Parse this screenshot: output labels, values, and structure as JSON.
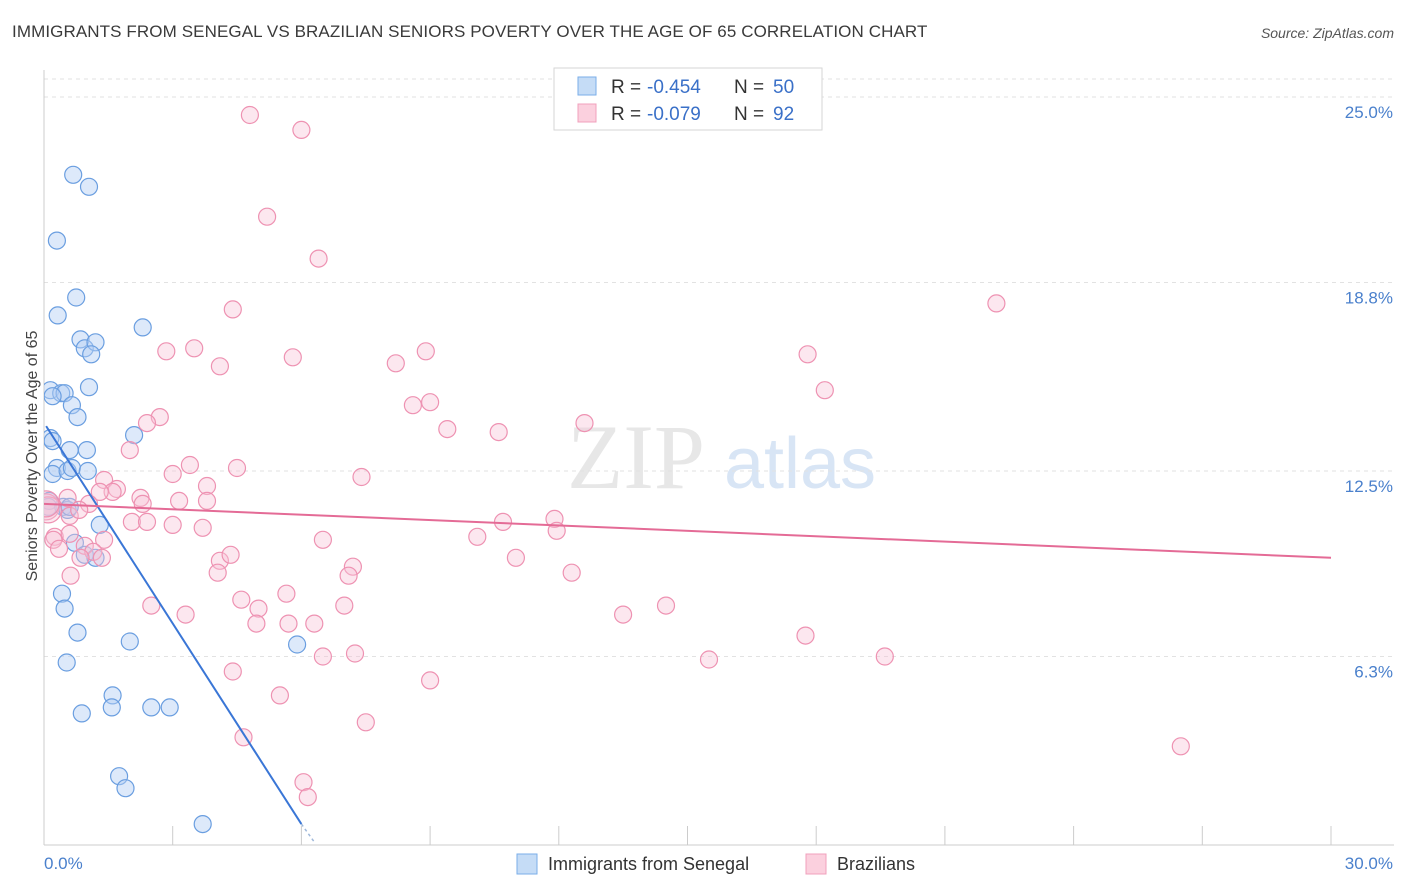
{
  "title": "IMMIGRANTS FROM SENEGAL VS BRAZILIAN SENIORS POVERTY OVER THE AGE OF 65 CORRELATION CHART",
  "source": "Source: ZipAtlas.com",
  "watermark": {
    "zip": "ZIP",
    "atlas": "atlas"
  },
  "legend_box": {
    "rows": [
      {
        "r_label": "R =",
        "r_value": "-0.454",
        "n_label": "N =",
        "n_value": "50",
        "color": "#7aaee8"
      },
      {
        "r_label": "R =",
        "r_value": "-0.079",
        "n_label": "N =",
        "n_value": "92",
        "color": "#f0a0bc"
      }
    ]
  },
  "chart_data": {
    "type": "scatter",
    "title": "IMMIGRANTS FROM SENEGAL VS BRAZILIAN SENIORS POVERTY OVER THE AGE OF 65 CORRELATION CHART",
    "xlabel": "",
    "ylabel": "Seniors Poverty Over the Age of 65",
    "xlim": [
      0,
      30
    ],
    "ylim": [
      0,
      25.8
    ],
    "x_tick_labels": [
      "0.0%",
      "30.0%"
    ],
    "y_ticks": [
      6.3,
      12.5,
      18.8,
      25.0
    ],
    "y_tick_labels": [
      "6.3%",
      "12.5%",
      "18.8%",
      "25.0%"
    ],
    "grid": true,
    "series": [
      {
        "name": "Immigrants from Senegal",
        "color": "#7aaee8",
        "trend": {
          "x": [
            0.05,
            6.0
          ],
          "y": [
            14.0,
            0.7
          ],
          "dashed_to": [
            6.3,
            0.1
          ]
        },
        "points": [
          [
            0.68,
            22.4
          ],
          [
            1.05,
            22.0
          ],
          [
            0.3,
            20.2
          ],
          [
            0.75,
            18.3
          ],
          [
            2.3,
            17.3
          ],
          [
            0.32,
            17.7
          ],
          [
            0.85,
            16.9
          ],
          [
            0.95,
            16.6
          ],
          [
            1.2,
            16.8
          ],
          [
            1.1,
            16.4
          ],
          [
            0.15,
            15.2
          ],
          [
            0.4,
            15.1
          ],
          [
            0.48,
            15.1
          ],
          [
            1.05,
            15.3
          ],
          [
            0.2,
            15.0
          ],
          [
            0.65,
            14.7
          ],
          [
            0.78,
            14.3
          ],
          [
            0.15,
            13.6
          ],
          [
            0.2,
            13.5
          ],
          [
            2.1,
            13.7
          ],
          [
            1.0,
            13.2
          ],
          [
            0.6,
            13.2
          ],
          [
            0.3,
            12.6
          ],
          [
            0.2,
            12.4
          ],
          [
            0.55,
            12.5
          ],
          [
            0.65,
            12.6
          ],
          [
            1.02,
            12.5
          ],
          [
            0.12,
            11.5
          ],
          [
            0.1,
            11.3
          ],
          [
            0.45,
            11.3
          ],
          [
            0.55,
            11.2
          ],
          [
            0.6,
            11.3
          ],
          [
            1.3,
            10.7
          ],
          [
            0.72,
            10.1
          ],
          [
            0.95,
            9.7
          ],
          [
            1.2,
            9.6
          ],
          [
            0.42,
            8.4
          ],
          [
            0.48,
            7.9
          ],
          [
            0.78,
            7.1
          ],
          [
            2.0,
            6.8
          ],
          [
            5.9,
            6.7
          ],
          [
            0.53,
            6.1
          ],
          [
            1.6,
            5.0
          ],
          [
            1.58,
            4.6
          ],
          [
            2.5,
            4.6
          ],
          [
            2.93,
            4.6
          ],
          [
            0.88,
            4.4
          ],
          [
            1.75,
            2.3
          ],
          [
            1.9,
            1.9
          ],
          [
            3.7,
            0.7
          ]
        ]
      },
      {
        "name": "Brazilians",
        "color": "#f0a0bc",
        "trend": {
          "x": [
            0.0,
            30.0
          ],
          "y": [
            11.4,
            9.6
          ]
        },
        "points": [
          [
            4.8,
            24.4
          ],
          [
            6.0,
            23.9
          ],
          [
            5.2,
            21.0
          ],
          [
            6.4,
            19.6
          ],
          [
            4.4,
            17.9
          ],
          [
            22.2,
            18.1
          ],
          [
            2.85,
            16.5
          ],
          [
            3.5,
            16.6
          ],
          [
            5.8,
            16.3
          ],
          [
            8.2,
            16.1
          ],
          [
            8.9,
            16.5
          ],
          [
            17.8,
            16.4
          ],
          [
            4.1,
            16.0
          ],
          [
            18.2,
            15.2
          ],
          [
            9.0,
            14.8
          ],
          [
            8.6,
            14.7
          ],
          [
            2.7,
            14.3
          ],
          [
            2.4,
            14.1
          ],
          [
            12.6,
            14.1
          ],
          [
            9.4,
            13.9
          ],
          [
            10.6,
            13.8
          ],
          [
            2.0,
            13.2
          ],
          [
            3.4,
            12.7
          ],
          [
            3.0,
            12.4
          ],
          [
            4.5,
            12.6
          ],
          [
            7.4,
            12.3
          ],
          [
            1.4,
            12.2
          ],
          [
            1.7,
            11.9
          ],
          [
            3.8,
            12.0
          ],
          [
            1.6,
            11.8
          ],
          [
            1.3,
            11.8
          ],
          [
            2.25,
            11.6
          ],
          [
            3.15,
            11.5
          ],
          [
            3.8,
            11.5
          ],
          [
            0.55,
            11.6
          ],
          [
            1.05,
            11.4
          ],
          [
            2.3,
            11.4
          ],
          [
            0.05,
            11.3
          ],
          [
            0.6,
            11.0
          ],
          [
            0.82,
            11.2
          ],
          [
            2.05,
            10.8
          ],
          [
            2.4,
            10.8
          ],
          [
            3.0,
            10.7
          ],
          [
            3.7,
            10.6
          ],
          [
            10.7,
            10.8
          ],
          [
            11.9,
            10.9
          ],
          [
            11.95,
            10.5
          ],
          [
            0.25,
            10.3
          ],
          [
            0.6,
            10.4
          ],
          [
            0.22,
            10.2
          ],
          [
            1.4,
            10.2
          ],
          [
            6.5,
            10.2
          ],
          [
            10.1,
            10.3
          ],
          [
            0.95,
            10.0
          ],
          [
            1.15,
            9.8
          ],
          [
            0.35,
            9.9
          ],
          [
            1.35,
            9.6
          ],
          [
            4.1,
            9.5
          ],
          [
            4.05,
            9.1
          ],
          [
            4.35,
            9.7
          ],
          [
            7.2,
            9.3
          ],
          [
            7.1,
            9.0
          ],
          [
            11.0,
            9.6
          ],
          [
            12.3,
            9.1
          ],
          [
            0.62,
            9.0
          ],
          [
            0.85,
            9.6
          ],
          [
            5.65,
            8.4
          ],
          [
            4.6,
            8.2
          ],
          [
            2.5,
            8.0
          ],
          [
            5.0,
            7.9
          ],
          [
            7.0,
            8.0
          ],
          [
            14.5,
            8.0
          ],
          [
            3.3,
            7.7
          ],
          [
            13.5,
            7.7
          ],
          [
            4.95,
            7.4
          ],
          [
            5.7,
            7.4
          ],
          [
            6.3,
            7.4
          ],
          [
            17.75,
            7.0
          ],
          [
            4.4,
            5.8
          ],
          [
            6.5,
            6.3
          ],
          [
            7.25,
            6.4
          ],
          [
            15.5,
            6.2
          ],
          [
            19.6,
            6.3
          ],
          [
            9.0,
            5.5
          ],
          [
            5.5,
            5.0
          ],
          [
            7.5,
            4.1
          ],
          [
            4.65,
            3.6
          ],
          [
            26.5,
            3.3
          ],
          [
            6.05,
            2.1
          ],
          [
            6.15,
            1.6
          ],
          [
            0.1,
            11.2
          ],
          [
            0.05,
            11.4
          ]
        ]
      }
    ],
    "legend": [
      "Immigrants from Senegal",
      "Brazilians"
    ],
    "legend_position": "bottom"
  }
}
